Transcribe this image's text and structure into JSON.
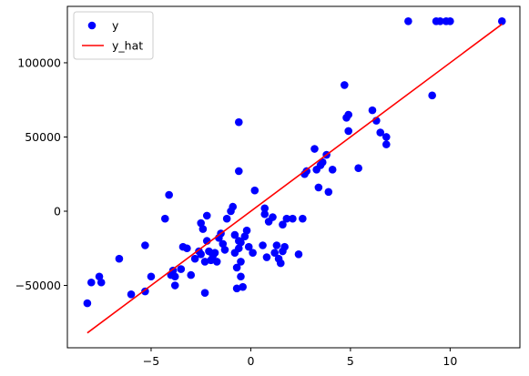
{
  "chart_data": {
    "type": "scatter",
    "title": "",
    "xlabel": "",
    "ylabel": "",
    "xlim": [
      -9.2,
      13.5
    ],
    "ylim": [
      -92000,
      138000
    ],
    "xticks": [
      -5,
      0,
      5,
      10
    ],
    "yticks": [
      -50000,
      0,
      50000,
      100000
    ],
    "xtick_labels": [
      "−5",
      "0",
      "5",
      "10"
    ],
    "ytick_labels": [
      "−50000",
      "0",
      "50000",
      "100000"
    ],
    "grid": false,
    "legend_position": "top-left",
    "series": [
      {
        "name": "y",
        "kind": "scatter",
        "color": "#0000ff",
        "points": [
          [
            -8.2,
            -62000
          ],
          [
            -8.0,
            -48000
          ],
          [
            -7.6,
            -44000
          ],
          [
            -7.5,
            -48000
          ],
          [
            -6.6,
            -32000
          ],
          [
            -6.0,
            -56000
          ],
          [
            -5.3,
            -54000
          ],
          [
            -5.3,
            -23000
          ],
          [
            -5.0,
            -44000
          ],
          [
            -4.3,
            -5000
          ],
          [
            -4.1,
            11000
          ],
          [
            -4.0,
            -43000
          ],
          [
            -3.9,
            -40000
          ],
          [
            -3.8,
            -44000
          ],
          [
            -3.8,
            -50000
          ],
          [
            -3.5,
            -39000
          ],
          [
            -3.4,
            -24000
          ],
          [
            -3.2,
            -25000
          ],
          [
            -3.0,
            -43000
          ],
          [
            -2.8,
            -32000
          ],
          [
            -2.6,
            -27000
          ],
          [
            -2.5,
            -29000
          ],
          [
            -2.5,
            -8000
          ],
          [
            -2.4,
            -12000
          ],
          [
            -2.3,
            -34000
          ],
          [
            -2.3,
            -55000
          ],
          [
            -2.2,
            -3000
          ],
          [
            -2.2,
            -20000
          ],
          [
            -2.1,
            -27000
          ],
          [
            -2.0,
            -33000
          ],
          [
            -1.9,
            -30000
          ],
          [
            -1.8,
            -28000
          ],
          [
            -1.7,
            -34000
          ],
          [
            -1.6,
            -18000
          ],
          [
            -1.5,
            -15000
          ],
          [
            -1.4,
            -22000
          ],
          [
            -1.3,
            -26000
          ],
          [
            -1.2,
            -5000
          ],
          [
            -1.0,
            0
          ],
          [
            -0.9,
            3000
          ],
          [
            -0.8,
            -28000
          ],
          [
            -0.8,
            -16000
          ],
          [
            -0.7,
            -52000
          ],
          [
            -0.7,
            -38000
          ],
          [
            -0.6,
            -25000
          ],
          [
            -0.6,
            -20000
          ],
          [
            -0.6,
            27000
          ],
          [
            -0.6,
            60000
          ],
          [
            -0.5,
            -44000
          ],
          [
            -0.5,
            -34000
          ],
          [
            -0.5,
            -21000
          ],
          [
            -0.4,
            -51000
          ],
          [
            -0.3,
            -17000
          ],
          [
            -0.2,
            -13000
          ],
          [
            -0.1,
            -24000
          ],
          [
            0.1,
            -28000
          ],
          [
            0.2,
            14000
          ],
          [
            0.6,
            -23000
          ],
          [
            0.7,
            2000
          ],
          [
            0.7,
            -2000
          ],
          [
            0.8,
            -31000
          ],
          [
            0.9,
            -7000
          ],
          [
            1.1,
            -4000
          ],
          [
            1.2,
            -28000
          ],
          [
            1.3,
            -23000
          ],
          [
            1.4,
            -32000
          ],
          [
            1.5,
            -35000
          ],
          [
            1.6,
            -27000
          ],
          [
            1.6,
            -9000
          ],
          [
            1.7,
            -24000
          ],
          [
            1.8,
            -5000
          ],
          [
            2.1,
            -5000
          ],
          [
            2.4,
            -29000
          ],
          [
            2.6,
            -5000
          ],
          [
            2.7,
            25000
          ],
          [
            2.8,
            27000
          ],
          [
            3.2,
            42000
          ],
          [
            3.3,
            28000
          ],
          [
            3.4,
            16000
          ],
          [
            3.5,
            31000
          ],
          [
            3.6,
            33000
          ],
          [
            3.8,
            38000
          ],
          [
            3.9,
            13000
          ],
          [
            4.1,
            28000
          ],
          [
            4.7,
            85000
          ],
          [
            4.8,
            63000
          ],
          [
            4.9,
            54000
          ],
          [
            4.9,
            65000
          ],
          [
            5.4,
            29000
          ],
          [
            6.1,
            68000
          ],
          [
            6.3,
            61000
          ],
          [
            6.5,
            53000
          ],
          [
            6.8,
            50000
          ],
          [
            6.8,
            45000
          ],
          [
            7.9,
            128000
          ],
          [
            9.1,
            78000
          ],
          [
            9.3,
            128000
          ],
          [
            9.5,
            128000
          ],
          [
            9.8,
            128000
          ],
          [
            10.0,
            128000
          ],
          [
            12.6,
            128000
          ]
        ]
      },
      {
        "name": "y_hat",
        "kind": "line",
        "color": "#ff0000",
        "points": [
          [
            -8.2,
            -82000
          ],
          [
            12.6,
            126000
          ]
        ]
      }
    ]
  }
}
